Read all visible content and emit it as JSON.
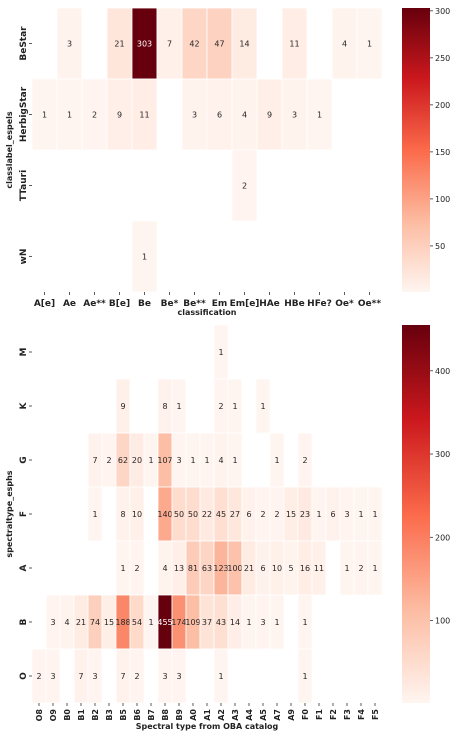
{
  "chart_data": [
    {
      "type": "heatmap",
      "xlabel": "classification",
      "ylabel": "classlabel_espels",
      "categories_x": [
        "A[e]",
        "Ae",
        "Ae**",
        "B[e]",
        "Be",
        "Be*",
        "Be**",
        "Em",
        "Em[e]",
        "HAe",
        "HBe",
        "HFe?",
        "Oe*",
        "Oe**"
      ],
      "categories_y": [
        "BeStar",
        "HerbigStar",
        "TTauri",
        "wN"
      ],
      "cells": [
        {
          "y": "BeStar",
          "x": "Ae",
          "value": 3
        },
        {
          "y": "BeStar",
          "x": "B[e]",
          "value": 21
        },
        {
          "y": "BeStar",
          "x": "Be",
          "value": 303
        },
        {
          "y": "BeStar",
          "x": "Be*",
          "value": 7
        },
        {
          "y": "BeStar",
          "x": "Be**",
          "value": 42
        },
        {
          "y": "BeStar",
          "x": "Em",
          "value": 47
        },
        {
          "y": "BeStar",
          "x": "Em[e]",
          "value": 14
        },
        {
          "y": "BeStar",
          "x": "HBe",
          "value": 11
        },
        {
          "y": "BeStar",
          "x": "Oe*",
          "value": 4
        },
        {
          "y": "BeStar",
          "x": "Oe**",
          "value": 1
        },
        {
          "y": "HerbigStar",
          "x": "A[e]",
          "value": 1
        },
        {
          "y": "HerbigStar",
          "x": "Ae",
          "value": 1
        },
        {
          "y": "HerbigStar",
          "x": "Ae**",
          "value": 2
        },
        {
          "y": "HerbigStar",
          "x": "B[e]",
          "value": 9
        },
        {
          "y": "HerbigStar",
          "x": "Be",
          "value": 11
        },
        {
          "y": "HerbigStar",
          "x": "Be**",
          "value": 3
        },
        {
          "y": "HerbigStar",
          "x": "Em",
          "value": 6
        },
        {
          "y": "HerbigStar",
          "x": "Em[e]",
          "value": 4
        },
        {
          "y": "HerbigStar",
          "x": "HAe",
          "value": 9
        },
        {
          "y": "HerbigStar",
          "x": "HBe",
          "value": 3
        },
        {
          "y": "HerbigStar",
          "x": "HFe?",
          "value": 1
        },
        {
          "y": "TTauri",
          "x": "Em[e]",
          "value": 2
        },
        {
          "y": "wN",
          "x": "Be",
          "value": 1
        }
      ],
      "colorbar": {
        "range": [
          1,
          303
        ],
        "ticks": [
          50,
          100,
          150,
          200,
          250,
          300
        ]
      },
      "colormap_colors": [
        "#fff5f0",
        "#fcbba1",
        "#fb6a4a",
        "#cb181d",
        "#67000d"
      ],
      "grid": false
    },
    {
      "type": "heatmap",
      "xlabel": "Spectral type from OBA catalog",
      "ylabel": "spectraltype_esphs",
      "categories_x": [
        "O8",
        "O9",
        "B0",
        "B1",
        "B2",
        "B3",
        "B5",
        "B6",
        "B7",
        "B8",
        "B9",
        "A0",
        "A1",
        "A2",
        "A3",
        "A4",
        "A5",
        "A7",
        "A9",
        "F0",
        "F1",
        "F2",
        "F3",
        "F4",
        "F5"
      ],
      "categories_y": [
        "M",
        "K",
        "G",
        "F",
        "A",
        "B",
        "O"
      ],
      "cells": [
        {
          "y": "M",
          "x": "A2",
          "value": 1
        },
        {
          "y": "K",
          "x": "B5",
          "value": 9
        },
        {
          "y": "K",
          "x": "B8",
          "value": 8
        },
        {
          "y": "K",
          "x": "B9",
          "value": 1
        },
        {
          "y": "K",
          "x": "A2",
          "value": 2
        },
        {
          "y": "K",
          "x": "A3",
          "value": 1
        },
        {
          "y": "K",
          "x": "A5",
          "value": 1
        },
        {
          "y": "G",
          "x": "B2",
          "value": 7
        },
        {
          "y": "G",
          "x": "B3",
          "value": 2
        },
        {
          "y": "G",
          "x": "B5",
          "value": 62
        },
        {
          "y": "G",
          "x": "B6",
          "value": 20
        },
        {
          "y": "G",
          "x": "B7",
          "value": 1
        },
        {
          "y": "G",
          "x": "B8",
          "value": 107
        },
        {
          "y": "G",
          "x": "B9",
          "value": 3
        },
        {
          "y": "G",
          "x": "A0",
          "value": 1
        },
        {
          "y": "G",
          "x": "A1",
          "value": 1
        },
        {
          "y": "G",
          "x": "A2",
          "value": 4
        },
        {
          "y": "G",
          "x": "A3",
          "value": 1
        },
        {
          "y": "G",
          "x": "A7",
          "value": 1
        },
        {
          "y": "G",
          "x": "F0",
          "value": 2
        },
        {
          "y": "F",
          "x": "B2",
          "value": 1
        },
        {
          "y": "F",
          "x": "B5",
          "value": 8
        },
        {
          "y": "F",
          "x": "B6",
          "value": 10
        },
        {
          "y": "F",
          "x": "B8",
          "value": 140
        },
        {
          "y": "F",
          "x": "B9",
          "value": 50
        },
        {
          "y": "F",
          "x": "A0",
          "value": 50
        },
        {
          "y": "F",
          "x": "A1",
          "value": 22
        },
        {
          "y": "F",
          "x": "A2",
          "value": 45
        },
        {
          "y": "F",
          "x": "A3",
          "value": 27
        },
        {
          "y": "F",
          "x": "A4",
          "value": 6
        },
        {
          "y": "F",
          "x": "A5",
          "value": 2
        },
        {
          "y": "F",
          "x": "A7",
          "value": 2
        },
        {
          "y": "F",
          "x": "A9",
          "value": 15
        },
        {
          "y": "F",
          "x": "F0",
          "value": 23
        },
        {
          "y": "F",
          "x": "F1",
          "value": 1
        },
        {
          "y": "F",
          "x": "F2",
          "value": 6
        },
        {
          "y": "F",
          "x": "F3",
          "value": 3
        },
        {
          "y": "F",
          "x": "F4",
          "value": 1
        },
        {
          "y": "F",
          "x": "F5",
          "value": 1
        },
        {
          "y": "A",
          "x": "B5",
          "value": 1
        },
        {
          "y": "A",
          "x": "B6",
          "value": 2
        },
        {
          "y": "A",
          "x": "B8",
          "value": 4
        },
        {
          "y": "A",
          "x": "B9",
          "value": 13
        },
        {
          "y": "A",
          "x": "A0",
          "value": 81
        },
        {
          "y": "A",
          "x": "A1",
          "value": 63
        },
        {
          "y": "A",
          "x": "A2",
          "value": 123
        },
        {
          "y": "A",
          "x": "A3",
          "value": 100
        },
        {
          "y": "A",
          "x": "A4",
          "value": 21
        },
        {
          "y": "A",
          "x": "A5",
          "value": 6
        },
        {
          "y": "A",
          "x": "A7",
          "value": 10
        },
        {
          "y": "A",
          "x": "A9",
          "value": 5
        },
        {
          "y": "A",
          "x": "F0",
          "value": 16
        },
        {
          "y": "A",
          "x": "F1",
          "value": 11
        },
        {
          "y": "A",
          "x": "F3",
          "value": 1
        },
        {
          "y": "A",
          "x": "F4",
          "value": 2
        },
        {
          "y": "A",
          "x": "F5",
          "value": 1
        },
        {
          "y": "B",
          "x": "O9",
          "value": 3
        },
        {
          "y": "B",
          "x": "B0",
          "value": 4
        },
        {
          "y": "B",
          "x": "B1",
          "value": 21
        },
        {
          "y": "B",
          "x": "B2",
          "value": 74
        },
        {
          "y": "B",
          "x": "B3",
          "value": 15
        },
        {
          "y": "B",
          "x": "B5",
          "value": 188
        },
        {
          "y": "B",
          "x": "B6",
          "value": 54
        },
        {
          "y": "B",
          "x": "B7",
          "value": 1
        },
        {
          "y": "B",
          "x": "B8",
          "value": 455
        },
        {
          "y": "B",
          "x": "B9",
          "value": 174
        },
        {
          "y": "B",
          "x": "A0",
          "value": 109
        },
        {
          "y": "B",
          "x": "A1",
          "value": 37
        },
        {
          "y": "B",
          "x": "A2",
          "value": 43
        },
        {
          "y": "B",
          "x": "A3",
          "value": 14
        },
        {
          "y": "B",
          "x": "A4",
          "value": 1
        },
        {
          "y": "B",
          "x": "A5",
          "value": 3
        },
        {
          "y": "B",
          "x": "A7",
          "value": 1
        },
        {
          "y": "B",
          "x": "F0",
          "value": 1
        },
        {
          "y": "O",
          "x": "O8",
          "value": 2
        },
        {
          "y": "O",
          "x": "O9",
          "value": 3
        },
        {
          "y": "O",
          "x": "B1",
          "value": 7
        },
        {
          "y": "O",
          "x": "B2",
          "value": 3
        },
        {
          "y": "O",
          "x": "B5",
          "value": 7
        },
        {
          "y": "O",
          "x": "B6",
          "value": 2
        },
        {
          "y": "O",
          "x": "B8",
          "value": 3
        },
        {
          "y": "O",
          "x": "B9",
          "value": 3
        },
        {
          "y": "O",
          "x": "A2",
          "value": 1
        },
        {
          "y": "O",
          "x": "F0",
          "value": 1
        }
      ],
      "colorbar": {
        "range": [
          1,
          455
        ],
        "ticks": [
          100,
          200,
          300,
          400
        ]
      },
      "colormap_colors": [
        "#fff5f0",
        "#fcbba1",
        "#fb6a4a",
        "#cb181d",
        "#67000d"
      ],
      "grid": false
    }
  ]
}
